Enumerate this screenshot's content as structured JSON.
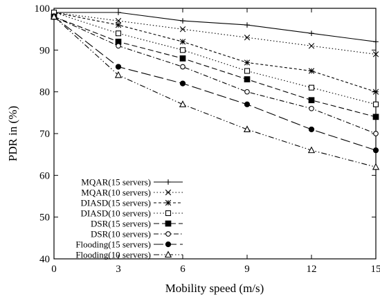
{
  "chart_data": {
    "type": "line",
    "xlabel": "Mobility speed (m/s)",
    "ylabel": "PDR in (%)",
    "x": [
      0,
      3,
      6,
      9,
      12,
      15
    ],
    "x_ticks": [
      "0",
      "3",
      "6",
      "9",
      "12",
      "15"
    ],
    "xlim": [
      0,
      15
    ],
    "ylim": [
      40,
      100
    ],
    "y_ticks": [
      "40",
      "50",
      "60",
      "70",
      "80",
      "90",
      "100"
    ],
    "grid": false,
    "legend_position": "bottom-left",
    "series": [
      {
        "name": "MQAR(15 servers)",
        "marker": "plus",
        "dash": "solid",
        "values": [
          99,
          99,
          97,
          96,
          94,
          92
        ]
      },
      {
        "name": "MQAR(10 servers)",
        "marker": "cross",
        "dash": "dot",
        "values": [
          99,
          97,
          95,
          93,
          91,
          89
        ]
      },
      {
        "name": "DIASD(15 servers)",
        "marker": "star",
        "dash": "short-dash",
        "values": [
          99,
          96,
          92,
          87,
          85,
          80
        ]
      },
      {
        "name": "DIASD(10 servers)",
        "marker": "open-square",
        "dash": "dot",
        "values": [
          99,
          94,
          90,
          85,
          81,
          77
        ]
      },
      {
        "name": "DSR(15 servers)",
        "marker": "filled-square",
        "dash": "dash",
        "values": [
          98,
          92,
          88,
          83,
          78,
          74
        ]
      },
      {
        "name": "DSR(10 servers)",
        "marker": "open-circle",
        "dash": "dash-dot",
        "values": [
          98,
          91,
          86,
          80,
          76,
          70
        ]
      },
      {
        "name": "Flooding(15 servers)",
        "marker": "filled-circle",
        "dash": "long-dash",
        "values": [
          98,
          86,
          82,
          77,
          71,
          66
        ]
      },
      {
        "name": "Flooding(10 servers)",
        "marker": "open-triangle",
        "dash": "dash-dot-dot",
        "values": [
          98,
          84,
          77,
          71,
          66,
          62
        ]
      }
    ]
  }
}
